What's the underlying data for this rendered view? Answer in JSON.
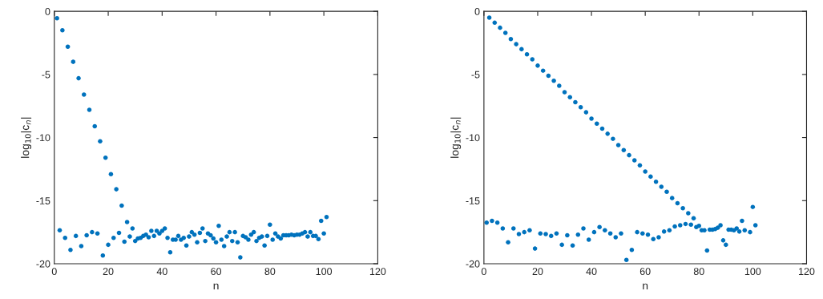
{
  "chart_data": [
    {
      "type": "scatter",
      "xlabel": "n",
      "ylabel": "log$_{10}$|c$_{n}$|",
      "xlim": [
        0,
        120
      ],
      "xticks": [
        0,
        20,
        40,
        60,
        80,
        100,
        120
      ],
      "ylim": [
        -20,
        0
      ],
      "yticks": [
        -20,
        -15,
        -10,
        -5,
        0
      ],
      "marker": "circle",
      "grid": false,
      "series": [
        {
          "color": "#0072bd",
          "x": [
            1,
            3,
            5,
            7,
            9,
            11,
            13,
            15,
            17,
            19,
            21,
            23,
            25,
            27,
            29,
            2,
            4,
            6,
            8,
            10,
            12,
            14,
            16,
            18,
            20,
            22,
            24,
            26,
            28,
            30,
            31,
            32,
            33,
            34,
            35,
            36,
            37,
            38,
            39,
            40,
            41,
            42,
            43,
            44,
            45,
            46,
            47,
            48,
            49,
            50,
            51,
            52,
            53,
            54,
            55,
            56,
            57,
            58,
            59,
            60,
            61,
            62,
            63,
            64,
            65,
            66,
            67,
            68,
            69,
            70,
            71,
            72,
            73,
            74,
            75,
            76,
            77,
            78,
            79,
            80,
            81,
            82,
            83,
            84,
            85,
            86,
            87,
            88,
            89,
            90,
            91,
            92,
            93,
            94,
            95,
            96,
            97,
            98,
            99,
            100,
            101
          ],
          "values": [
            -0.55,
            -1.5,
            -2.8,
            -4.0,
            -5.3,
            -6.6,
            -7.8,
            -9.1,
            -10.3,
            -11.6,
            -12.9,
            -14.1,
            -15.4,
            -16.7,
            -17.2,
            -17.35,
            -17.95,
            -18.9,
            -17.8,
            -18.6,
            -17.75,
            -17.5,
            -17.6,
            -19.35,
            -18.5,
            -17.95,
            -17.55,
            -18.25,
            -17.85,
            -18.2,
            -18.0,
            -17.95,
            -17.8,
            -17.7,
            -17.9,
            -17.4,
            -17.8,
            -17.4,
            -17.6,
            -17.4,
            -17.2,
            -17.95,
            -19.1,
            -18.1,
            -18.1,
            -17.8,
            -18.1,
            -17.95,
            -18.55,
            -17.85,
            -17.5,
            -17.7,
            -18.3,
            -17.55,
            -17.2,
            -18.2,
            -17.6,
            -17.75,
            -18.0,
            -18.3,
            -17.0,
            -18.1,
            -18.6,
            -17.85,
            -17.5,
            -18.2,
            -17.5,
            -18.3,
            -19.5,
            -17.8,
            -17.9,
            -18.1,
            -17.7,
            -17.5,
            -18.2,
            -17.95,
            -17.85,
            -18.55,
            -17.8,
            -16.9,
            -18.1,
            -17.6,
            -17.85,
            -18.0,
            -17.75,
            -17.75,
            -17.75,
            -17.7,
            -17.75,
            -17.7,
            -17.7,
            -17.6,
            -17.5,
            -17.85,
            -17.5,
            -17.8,
            -17.8,
            -18.05,
            -16.6,
            -17.6,
            -16.3
          ]
        }
      ]
    },
    {
      "type": "scatter",
      "xlabel": "n",
      "ylabel": "log$_{10}$|c$_{n}$|",
      "xlim": [
        0,
        120
      ],
      "xticks": [
        0,
        20,
        40,
        60,
        80,
        100,
        120
      ],
      "ylim": [
        -20,
        0
      ],
      "yticks": [
        -20,
        -15,
        -10,
        -5,
        0
      ],
      "marker": "circle",
      "grid": false,
      "series": [
        {
          "color": "#0072bd",
          "x": [
            2,
            4,
            6,
            8,
            10,
            12,
            14,
            16,
            18,
            20,
            22,
            24,
            26,
            28,
            30,
            32,
            34,
            36,
            38,
            40,
            42,
            44,
            46,
            48,
            50,
            52,
            54,
            56,
            58,
            60,
            62,
            64,
            66,
            68,
            70,
            72,
            74,
            76,
            78,
            1,
            3,
            5,
            7,
            9,
            11,
            13,
            15,
            17,
            19,
            21,
            23,
            25,
            27,
            29,
            31,
            33,
            35,
            37,
            39,
            41,
            43,
            45,
            47,
            49,
            51,
            53,
            55,
            57,
            59,
            61,
            63,
            65,
            67,
            69,
            71,
            73,
            75,
            77,
            79,
            80,
            81,
            82,
            83,
            84,
            85,
            86,
            87,
            88,
            89,
            90,
            91,
            92,
            93,
            94,
            95,
            96,
            97,
            99,
            100,
            101
          ],
          "values": [
            -0.5,
            -0.9,
            -1.3,
            -1.7,
            -2.2,
            -2.6,
            -3.0,
            -3.4,
            -3.8,
            -4.3,
            -4.7,
            -5.1,
            -5.5,
            -5.9,
            -6.4,
            -6.8,
            -7.2,
            -7.6,
            -8.0,
            -8.5,
            -8.9,
            -9.3,
            -9.7,
            -10.1,
            -10.6,
            -11.0,
            -11.4,
            -11.8,
            -12.2,
            -12.7,
            -13.1,
            -13.5,
            -13.9,
            -14.3,
            -14.8,
            -15.2,
            -15.6,
            -16.0,
            -16.4,
            -16.75,
            -16.6,
            -16.75,
            -17.2,
            -18.3,
            -17.2,
            -17.65,
            -17.5,
            -17.35,
            -18.8,
            -17.6,
            -17.65,
            -17.8,
            -17.6,
            -18.5,
            -17.75,
            -18.55,
            -17.7,
            -17.2,
            -18.1,
            -17.5,
            -17.1,
            -17.35,
            -17.6,
            -17.9,
            -17.6,
            -19.7,
            -18.9,
            -17.5,
            -17.6,
            -17.7,
            -18.05,
            -17.9,
            -17.45,
            -17.35,
            -17.05,
            -16.95,
            -16.85,
            -16.9,
            -17.1,
            -17.0,
            -17.35,
            -17.35,
            -18.95,
            -17.3,
            -17.3,
            -17.25,
            -17.15,
            -16.95,
            -18.15,
            -18.5,
            -17.3,
            -17.3,
            -17.35,
            -17.2,
            -17.45,
            -16.6,
            -17.35,
            -17.5,
            -15.5,
            -16.95
          ]
        }
      ]
    }
  ]
}
